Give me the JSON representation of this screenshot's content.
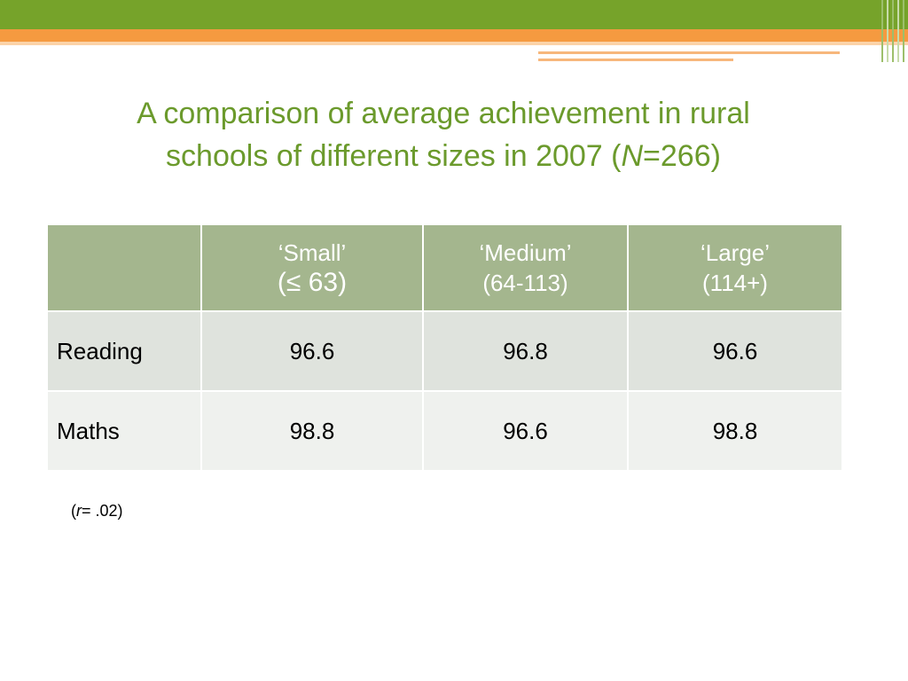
{
  "title": {
    "line1": "A comparison of average achievement in rural",
    "line2_prefix": "schools of different sizes in 2007 (",
    "line2_italic": "N",
    "line2_suffix": "=266)"
  },
  "table": {
    "corner": "",
    "headers": [
      {
        "name": "‘Small’",
        "range": "(≤ 63)"
      },
      {
        "name": "‘Medium’",
        "range": "(64-113)"
      },
      {
        "name": "‘Large’",
        "range": "(114+)"
      }
    ],
    "rows": [
      {
        "label": "Reading",
        "values": [
          "96.6",
          "96.8",
          "96.6"
        ]
      },
      {
        "label": "Maths",
        "values": [
          "98.8",
          "96.6",
          "98.8"
        ]
      }
    ]
  },
  "note": {
    "open": "(",
    "italic": "r",
    "rest": "= .02)"
  },
  "colors": {
    "header_green": "#76a32a",
    "header_orange": "#f59a40",
    "title_green": "#6b9a2c",
    "table_header": "#a4b68e",
    "row_dark": "#dfe3dd",
    "row_light": "#eff1ee"
  }
}
